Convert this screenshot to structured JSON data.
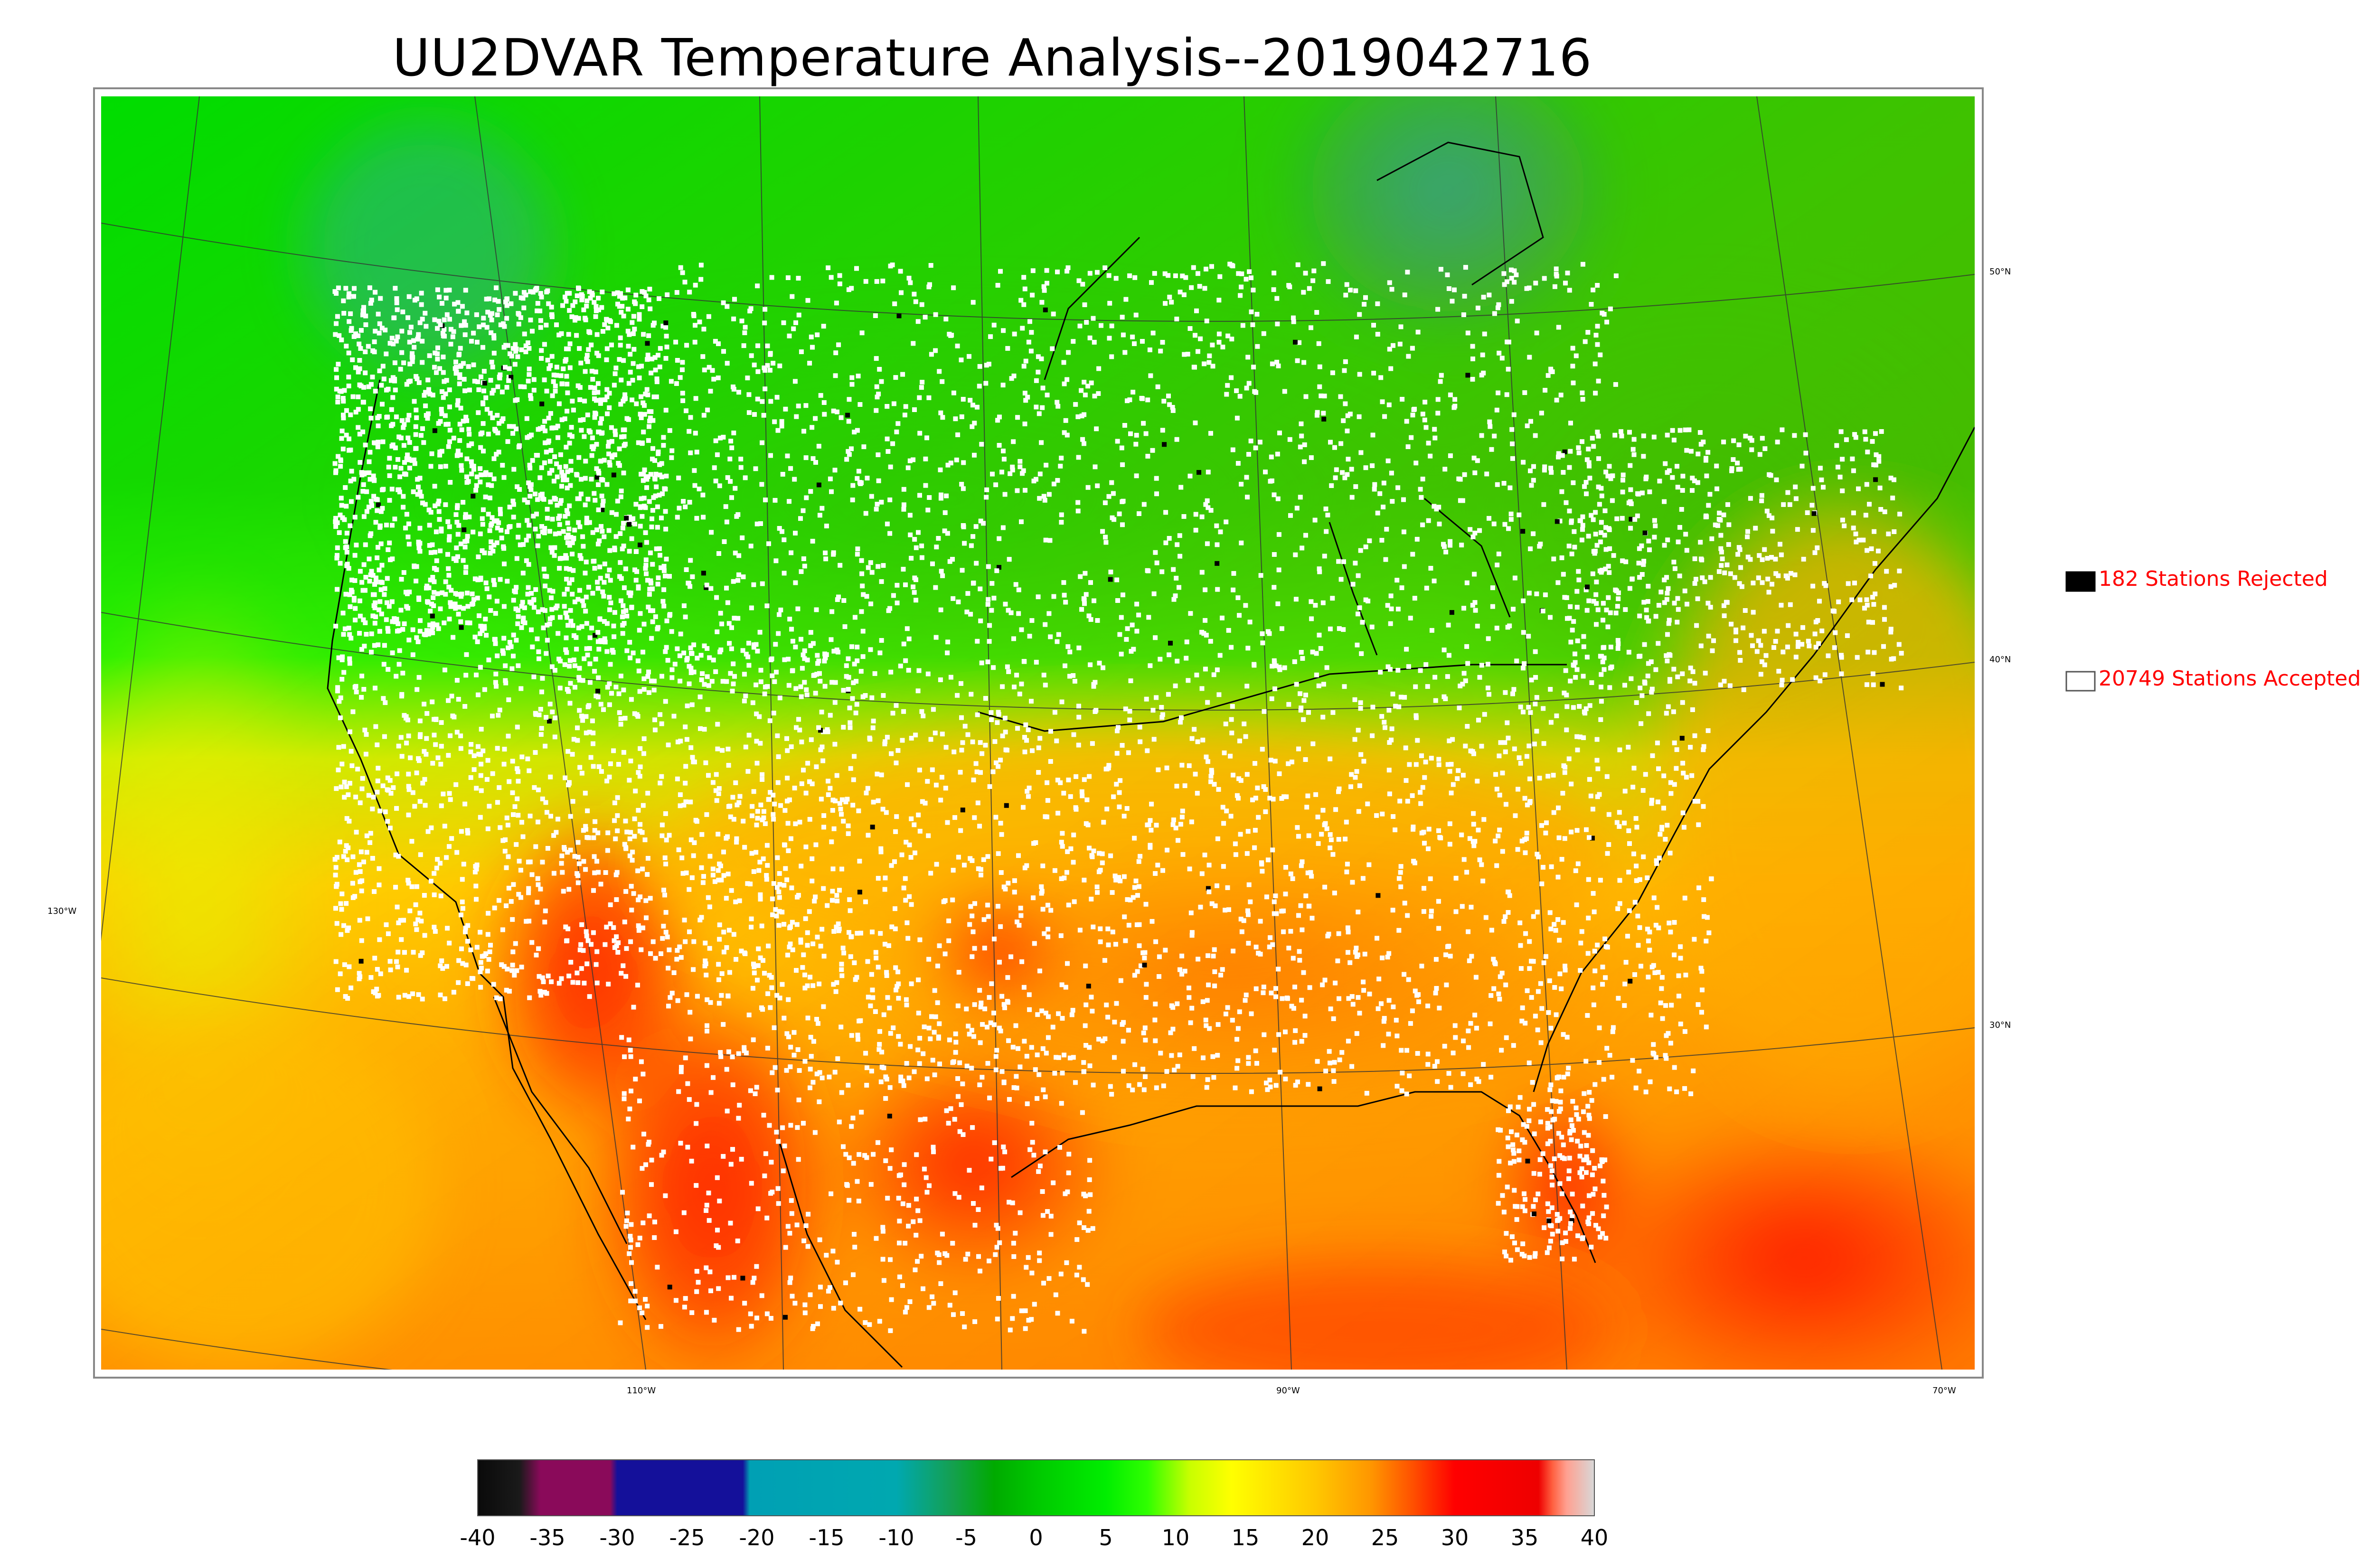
{
  "title": "UU2DVAR Temperature Analysis--2019042716",
  "legend": {
    "rejected": {
      "label": "182 Stations Rejected",
      "swatch_color": "#000000"
    },
    "accepted": {
      "label": "20749 Stations Accepted",
      "swatch_color": "#ffffff"
    },
    "text_color": "#ff0000"
  },
  "map_axes": {
    "longitude_labels": [
      "130°W",
      "110°W",
      "90°W",
      "70°W"
    ],
    "latitude_labels": [
      "50°N",
      "40°N",
      "30°N"
    ]
  },
  "colorbar": {
    "range": [
      -40,
      40
    ],
    "ticks": [
      "-40",
      "-35",
      "-30",
      "-25",
      "-20",
      "-15",
      "-10",
      "-5",
      "0",
      "5",
      "10",
      "15",
      "20",
      "25",
      "30",
      "35",
      "40"
    ],
    "color_stops": [
      {
        "value": -40,
        "color": "#0a0a0a"
      },
      {
        "value": -37,
        "color": "#1a1a1a"
      },
      {
        "value": -35.5,
        "color": "#8a0a5a"
      },
      {
        "value": -30.5,
        "color": "#8a0a5a"
      },
      {
        "value": -30,
        "color": "#14109a"
      },
      {
        "value": -21,
        "color": "#14109a"
      },
      {
        "value": -20.5,
        "color": "#00a0b4"
      },
      {
        "value": -10,
        "color": "#00a8b0"
      },
      {
        "value": -6,
        "color": "#14a050"
      },
      {
        "value": -3,
        "color": "#00aa00"
      },
      {
        "value": 0,
        "color": "#00c800"
      },
      {
        "value": 5,
        "color": "#00ee00"
      },
      {
        "value": 8,
        "color": "#30ff00"
      },
      {
        "value": 11,
        "color": "#c8ff00"
      },
      {
        "value": 14,
        "color": "#ffff00"
      },
      {
        "value": 20,
        "color": "#ffc800"
      },
      {
        "value": 24,
        "color": "#ff9600"
      },
      {
        "value": 27,
        "color": "#ff5000"
      },
      {
        "value": 30,
        "color": "#ff0000"
      },
      {
        "value": 36,
        "color": "#ee0000"
      },
      {
        "value": 37,
        "color": "#ff6040"
      },
      {
        "value": 38,
        "color": "#ffa090"
      },
      {
        "value": 40,
        "color": "#d8d8d8"
      }
    ]
  },
  "colors": {
    "frame": "#888888",
    "coastline": "#000000",
    "graticule": "#333333"
  }
}
